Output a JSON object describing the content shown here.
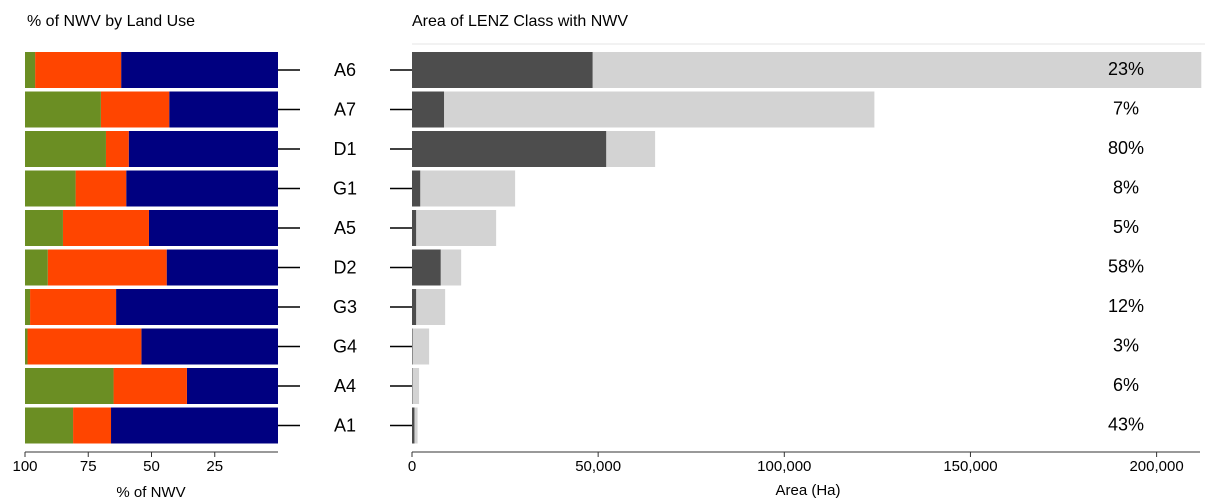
{
  "chart_data": [
    {
      "type": "bar",
      "orientation": "horizontal",
      "stacked": true,
      "title": "% of NWV by Land Use",
      "xlabel": "% of NWV",
      "categories": [
        "A6",
        "A7",
        "D1",
        "G1",
        "A5",
        "D2",
        "G3",
        "G4",
        "A4",
        "A1"
      ],
      "series": [
        {
          "color": "#000080",
          "values": [
            62,
            43,
            59,
            60,
            51,
            44,
            64,
            54,
            36,
            66
          ]
        },
        {
          "color": "#ff4500",
          "values": [
            34,
            27,
            9,
            20,
            34,
            47,
            34,
            45,
            29,
            15
          ]
        },
        {
          "color": "#6b8e23",
          "values": [
            4,
            30,
            32,
            20,
            15,
            9,
            2,
            1,
            35,
            19
          ]
        }
      ],
      "xlim": [
        100,
        0
      ],
      "xticks": [
        100,
        75,
        50,
        25
      ]
    },
    {
      "type": "bar",
      "orientation": "horizontal",
      "stacked": false,
      "title": "Area of LENZ Class with NWV",
      "xlabel": "Area (Ha)",
      "series": [
        {
          "color": "#d3d3d3",
          "values": [
            212000,
            124200,
            65300,
            27700,
            22600,
            13200,
            8900,
            4600,
            1900,
            1500
          ]
        },
        {
          "color": "#4d4d4d",
          "values": [
            48500,
            8600,
            52150,
            2200,
            1100,
            7700,
            1100,
            140,
            110,
            650
          ]
        }
      ],
      "labels": [
        "23%",
        "7%",
        "80%",
        "8%",
        "5%",
        "58%",
        "12%",
        "3%",
        "6%",
        "43%"
      ],
      "xlim": [
        0,
        213000
      ],
      "xticks": [
        0,
        {
          "value": 50000,
          "label": "50,000"
        },
        {
          "value": 100000,
          "label": "100,000"
        },
        {
          "value": 150000,
          "label": "150,000"
        },
        {
          "value": 200000,
          "label": "200,000"
        }
      ]
    }
  ]
}
